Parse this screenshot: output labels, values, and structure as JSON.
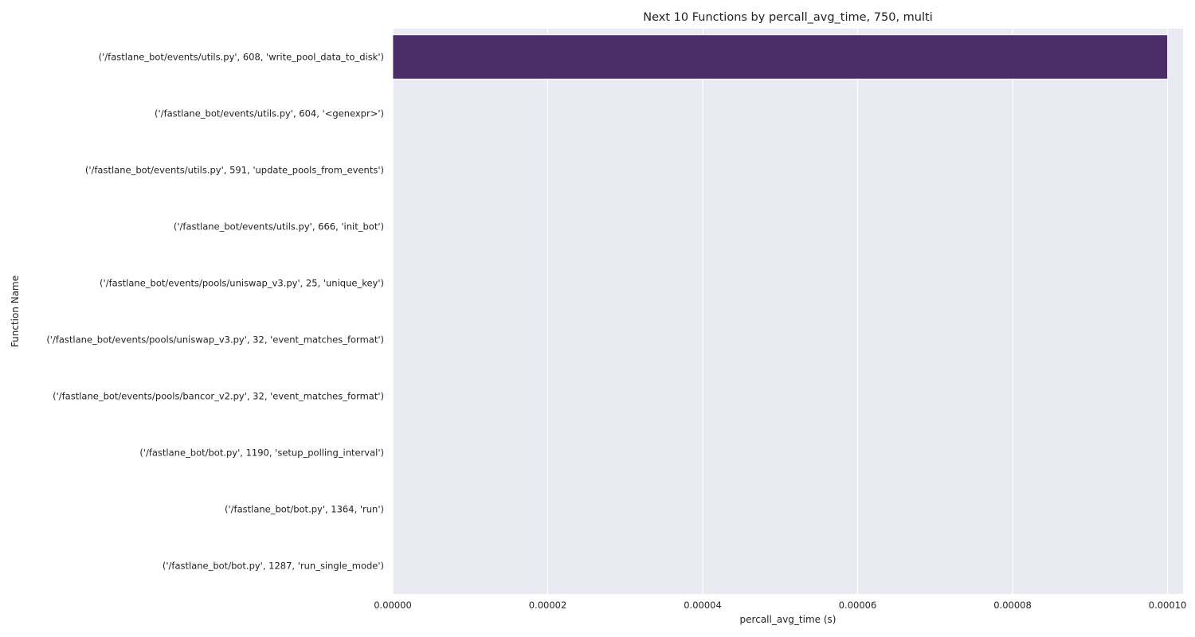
{
  "chart_data": {
    "type": "bar",
    "orientation": "horizontal",
    "title": "Next 10 Functions by percall_avg_time, 750, multi",
    "xlabel": "percall_avg_time (s)",
    "ylabel": "Function Name",
    "xlim": [
      0,
      0.000102
    ],
    "xticks": [
      0,
      2e-05,
      4e-05,
      6e-05,
      8e-05,
      0.0001
    ],
    "xtick_labels": [
      "0.00000",
      "0.00002",
      "0.00004",
      "0.00006",
      "0.00008",
      "0.00010"
    ],
    "grid": true,
    "categories": [
      "('/fastlane_bot/events/utils.py', 608, 'write_pool_data_to_disk')",
      "('/fastlane_bot/events/utils.py', 604, '<genexpr>')",
      "('/fastlane_bot/events/utils.py', 591, 'update_pools_from_events')",
      "('/fastlane_bot/events/utils.py', 666, 'init_bot')",
      "('/fastlane_bot/events/pools/uniswap_v3.py', 25, 'unique_key')",
      "('/fastlane_bot/events/pools/uniswap_v3.py', 32, 'event_matches_format')",
      "('/fastlane_bot/events/pools/bancor_v2.py', 32, 'event_matches_format')",
      "('/fastlane_bot/bot.py', 1190, 'setup_polling_interval')",
      "('/fastlane_bot/bot.py', 1364, 'run')",
      "('/fastlane_bot/bot.py', 1287, 'run_single_mode')"
    ],
    "values": [
      0.0001,
      0,
      0,
      0,
      0,
      0,
      0,
      0,
      0,
      0
    ],
    "colors": {
      "plot_background": "#EAEAF2",
      "grid": "#FFFFFF",
      "bar": "#4B2D69",
      "text": "#222222"
    }
  }
}
